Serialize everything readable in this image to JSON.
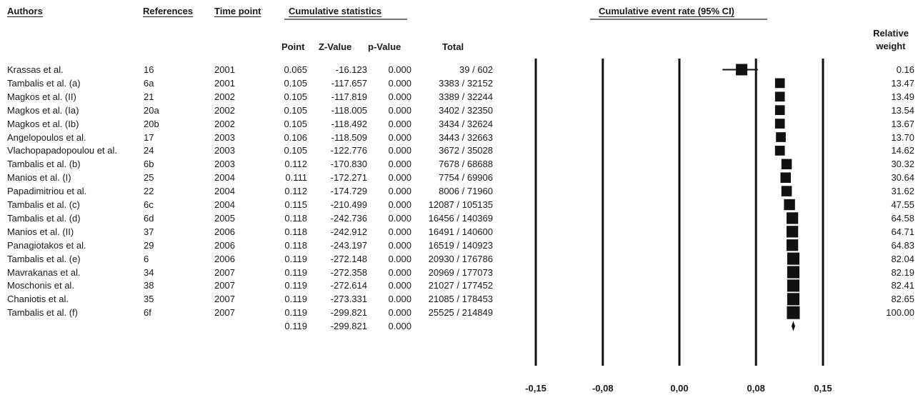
{
  "headers": {
    "authors": "Authors",
    "references": "References",
    "time_point": "Time point",
    "cumulative_statistics": "Cumulative statistics",
    "cumulative_event_rate": "Cumulative event rate (95% CI)",
    "point": "Point",
    "z_value": "Z-Value",
    "p_value": "p-Value",
    "total": "Total",
    "relative_weight_1": "Relative",
    "relative_weight_2": "weight"
  },
  "rows": [
    {
      "author": "Krassas et al.",
      "ref": "16",
      "year": "2001",
      "point": "0.065",
      "z": "-16.123",
      "p": "0.000",
      "total": "39 / 602",
      "weight": "0.16"
    },
    {
      "author": "Tambalis et al. (a)",
      "ref": "6a",
      "year": "2001",
      "point": "0.105",
      "z": "-117.657",
      "p": "0.000",
      "total": "3383 / 32152",
      "weight": "13.47"
    },
    {
      "author": "Magkos et  al. (II)",
      "ref": "21",
      "year": "2002",
      "point": "0.105",
      "z": "-117.819",
      "p": "0.000",
      "total": "3389 / 32244",
      "weight": "13.49"
    },
    {
      "author": "Magkos et  al. (Ia)",
      "ref": "20a",
      "year": "2002",
      "point": "0.105",
      "z": "-118.005",
      "p": "0.000",
      "total": "3402 / 32350",
      "weight": "13.54"
    },
    {
      "author": "Magkos et  al. (Ib)",
      "ref": "20b",
      "year": "2002",
      "point": "0.105",
      "z": "-118.492",
      "p": "0.000",
      "total": "3434 / 32624",
      "weight": "13.67"
    },
    {
      "author": "Angelopoulos  et al.",
      "ref": "17",
      "year": "2003",
      "point": "0.106",
      "z": "-118.509",
      "p": "0.000",
      "total": "3443 / 32663",
      "weight": "13.70"
    },
    {
      "author": "Vlachopapadopoulou et al.",
      "ref": "24",
      "year": "2003",
      "point": "0.105",
      "z": "-122.776",
      "p": "0.000",
      "total": "3672 / 35028",
      "weight": "14.62"
    },
    {
      "author": "Tambalis et al. (b)",
      "ref": "6b",
      "year": "2003",
      "point": "0.112",
      "z": "-170.830",
      "p": "0.000",
      "total": "7678 / 68688",
      "weight": "30.32"
    },
    {
      "author": "Manios et al. (I)",
      "ref": "25",
      "year": "2004",
      "point": "0.111",
      "z": "-172.271",
      "p": "0.000",
      "total": "7754 / 69906",
      "weight": "30.64"
    },
    {
      "author": "Papadimitriou et al.",
      "ref": "22",
      "year": "2004",
      "point": "0.112",
      "z": "-174.729",
      "p": "0.000",
      "total": "8006 / 71960",
      "weight": "31.62"
    },
    {
      "author": "Tambalis et al. (c)",
      "ref": "6c",
      "year": "2004",
      "point": "0.115",
      "z": "-210.499",
      "p": "0.000",
      "total": "12087 / 105135",
      "weight": "47.55"
    },
    {
      "author": "Tambalis et al. (d)",
      "ref": "6d",
      "year": "2005",
      "point": "0.118",
      "z": "-242.736",
      "p": "0.000",
      "total": "16456 / 140369",
      "weight": "64.58"
    },
    {
      "author": "Manios et al. (II)",
      "ref": "37",
      "year": "2006",
      "point": "0.118",
      "z": "-242.912",
      "p": "0.000",
      "total": "16491 / 140600",
      "weight": "64.71"
    },
    {
      "author": "Panagiotakos et al.",
      "ref": "29",
      "year": "2006",
      "point": "0.118",
      "z": "-243.197",
      "p": "0.000",
      "total": "16519 / 140923",
      "weight": "64.83"
    },
    {
      "author": "Tambalis et al. (e)",
      "ref": "6",
      "year": "2006",
      "point": "0.119",
      "z": "-272.148",
      "p": "0.000",
      "total": "20930 / 176786",
      "weight": "82.04"
    },
    {
      "author": "Mavrakanas et al.",
      "ref": "34",
      "year": "2007",
      "point": "0.119",
      "z": "-272.358",
      "p": "0.000",
      "total": "20969 / 177073",
      "weight": "82.19"
    },
    {
      "author": "Moschonis et al.",
      "ref": "38",
      "year": "2007",
      "point": "0.119",
      "z": "-272.614",
      "p": "0.000",
      "total": "21027 / 177452",
      "weight": "82.41"
    },
    {
      "author": "Chaniotis et al.",
      "ref": "35",
      "year": "2007",
      "point": "0.119",
      "z": "-273.331",
      "p": "0.000",
      "total": "21085 / 178453",
      "weight": "82.65"
    },
    {
      "author": "Tambalis et al. (f)",
      "ref": "6f",
      "year": "2007",
      "point": "0.119",
      "z": "-299.821",
      "p": "0.000",
      "total": "25525 / 214849",
      "weight": "100.00"
    }
  ],
  "summary": {
    "point": "0.119",
    "z": "-299.821",
    "p": "0.000"
  },
  "chart_data": {
    "type": "forest",
    "axis_ticks": [
      -0.15,
      -0.08,
      0.0,
      0.08,
      0.15
    ],
    "axis_tick_labels": [
      "-0,15",
      "-0,08",
      "0,00",
      "0,08",
      "0,15"
    ],
    "xlim": [
      -0.15,
      0.15
    ],
    "estimates": [
      {
        "point": 0.065,
        "lower": 0.045,
        "upper": 0.082,
        "weight": 0.16
      },
      {
        "point": 0.105,
        "lower": 0.102,
        "upper": 0.109,
        "weight": 13.47
      },
      {
        "point": 0.105,
        "lower": 0.102,
        "upper": 0.109,
        "weight": 13.49
      },
      {
        "point": 0.105,
        "lower": 0.102,
        "upper": 0.109,
        "weight": 13.54
      },
      {
        "point": 0.105,
        "lower": 0.102,
        "upper": 0.109,
        "weight": 13.67
      },
      {
        "point": 0.106,
        "lower": 0.102,
        "upper": 0.109,
        "weight": 13.7
      },
      {
        "point": 0.105,
        "lower": 0.102,
        "upper": 0.108,
        "weight": 14.62
      },
      {
        "point": 0.112,
        "lower": 0.11,
        "upper": 0.114,
        "weight": 30.32
      },
      {
        "point": 0.111,
        "lower": 0.109,
        "upper": 0.113,
        "weight": 30.64
      },
      {
        "point": 0.112,
        "lower": 0.109,
        "upper": 0.114,
        "weight": 31.62
      },
      {
        "point": 0.115,
        "lower": 0.113,
        "upper": 0.117,
        "weight": 47.55
      },
      {
        "point": 0.118,
        "lower": 0.116,
        "upper": 0.119,
        "weight": 64.58
      },
      {
        "point": 0.118,
        "lower": 0.116,
        "upper": 0.119,
        "weight": 64.71
      },
      {
        "point": 0.118,
        "lower": 0.116,
        "upper": 0.119,
        "weight": 64.83
      },
      {
        "point": 0.119,
        "lower": 0.117,
        "upper": 0.12,
        "weight": 82.04
      },
      {
        "point": 0.119,
        "lower": 0.117,
        "upper": 0.12,
        "weight": 82.19
      },
      {
        "point": 0.119,
        "lower": 0.117,
        "upper": 0.12,
        "weight": 82.41
      },
      {
        "point": 0.119,
        "lower": 0.117,
        "upper": 0.12,
        "weight": 82.65
      },
      {
        "point": 0.119,
        "lower": 0.118,
        "upper": 0.12,
        "weight": 100.0
      }
    ],
    "summary_estimate": {
      "point": 0.119,
      "lower": 0.118,
      "upper": 0.12
    }
  }
}
